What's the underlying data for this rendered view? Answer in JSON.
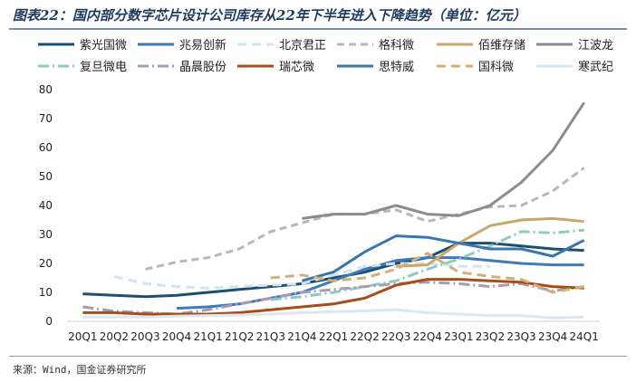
{
  "title": "图表22：国内部分数字芯片设计公司库存从22年下半年进入下降趋势（单位：亿元）",
  "source": "来源：Wind，国金证券研究所",
  "chart_data": {
    "type": "line",
    "ylim": [
      0,
      80
    ],
    "yticks": [
      0,
      10,
      20,
      30,
      40,
      50,
      60,
      70,
      80
    ],
    "categories": [
      "20Q1",
      "20Q2",
      "20Q3",
      "20Q4",
      "21Q1",
      "21Q2",
      "21Q3",
      "21Q4",
      "22Q1",
      "22Q2",
      "22Q3",
      "22Q4",
      "23Q1",
      "23Q2",
      "23Q3",
      "23Q4",
      "24Q1"
    ],
    "series": [
      {
        "name": "紫光国微",
        "color": "#1b4f72",
        "dash": "",
        "width": 3,
        "values": [
          9.5,
          9,
          8.5,
          9,
          10,
          11,
          12,
          13,
          15,
          17,
          20,
          22,
          27,
          27,
          26,
          25,
          24.5
        ]
      },
      {
        "name": "兆易创新",
        "color": "#3d7ab8",
        "dash": "",
        "width": 3,
        "values": [
          null,
          null,
          null,
          4.5,
          5,
          6,
          8,
          10,
          14,
          18,
          21,
          22,
          22,
          21,
          20,
          19.5,
          19.5
        ]
      },
      {
        "name": "北京君正",
        "color": "#d4e3f1",
        "dash": "10,6",
        "width": 3,
        "values": [
          null,
          15.5,
          13,
          12,
          11.5,
          12,
          12.5,
          13,
          16,
          19,
          20,
          20,
          19,
          19,
          null,
          null,
          null
        ]
      },
      {
        "name": "格科微",
        "color": "#b8b8b8",
        "dash": "8,5",
        "width": 3,
        "values": [
          null,
          null,
          18,
          20.5,
          22,
          25,
          31,
          34,
          37,
          37,
          38.5,
          34.5,
          37,
          39.5,
          40,
          45,
          53
        ]
      },
      {
        "name": "佰维存储",
        "color": "#c9a76a",
        "dash": "",
        "width": 3,
        "values": [
          null,
          null,
          null,
          null,
          null,
          null,
          null,
          null,
          null,
          null,
          19,
          19.5,
          27,
          33,
          35,
          35.5,
          34.5
        ]
      },
      {
        "name": "江波龙",
        "color": "#8c8c8c",
        "dash": "",
        "width": 3,
        "values": [
          null,
          null,
          null,
          null,
          null,
          null,
          null,
          35.5,
          37,
          37,
          40,
          37,
          36.5,
          40,
          48,
          59,
          75.5
        ]
      },
      {
        "name": "复旦微电",
        "color": "#8ec9c4",
        "dash": "12,4,2,4",
        "width": 3,
        "values": [
          null,
          null,
          null,
          null,
          null,
          null,
          7.5,
          8.5,
          10,
          12,
          14,
          18,
          21.5,
          26,
          31,
          30.5,
          31.5
        ]
      },
      {
        "name": "晶晨股份",
        "color": "#a89bb5",
        "dash": "12,4,2,4",
        "width": 3,
        "values": [
          5,
          3.5,
          3,
          2.5,
          4,
          6,
          8,
          10,
          11,
          12,
          13,
          13.5,
          13,
          12,
          13,
          10.5,
          12
        ]
      },
      {
        "name": "瑞芯微",
        "color": "#a64d1a",
        "dash": "",
        "width": 3,
        "values": [
          3,
          3,
          2.5,
          2.5,
          2.5,
          3,
          4,
          5,
          6,
          8,
          12.5,
          14.5,
          14.5,
          14,
          13.5,
          12,
          11.5
        ]
      },
      {
        "name": "思特威",
        "color": "#3b75b0",
        "dash": "",
        "width": 3,
        "values": [
          null,
          null,
          null,
          null,
          null,
          null,
          null,
          14,
          17,
          24,
          29.5,
          29,
          27,
          25,
          25,
          22.5,
          28
        ]
      },
      {
        "name": "国科微",
        "color": "#d2b174",
        "dash": "10,6",
        "width": 3,
        "values": [
          null,
          null,
          null,
          null,
          null,
          null,
          15,
          16,
          14,
          15,
          18,
          23.5,
          17,
          15.5,
          14.5,
          10,
          12
        ]
      },
      {
        "name": "寒武纪",
        "color": "#dce7f2",
        "dash": "",
        "width": 3,
        "values": [
          1.5,
          1.5,
          1.5,
          1.8,
          2,
          2.2,
          2.5,
          3,
          3.3,
          3.6,
          4,
          3,
          2.5,
          2,
          2,
          1.2,
          1.5
        ]
      }
    ]
  }
}
